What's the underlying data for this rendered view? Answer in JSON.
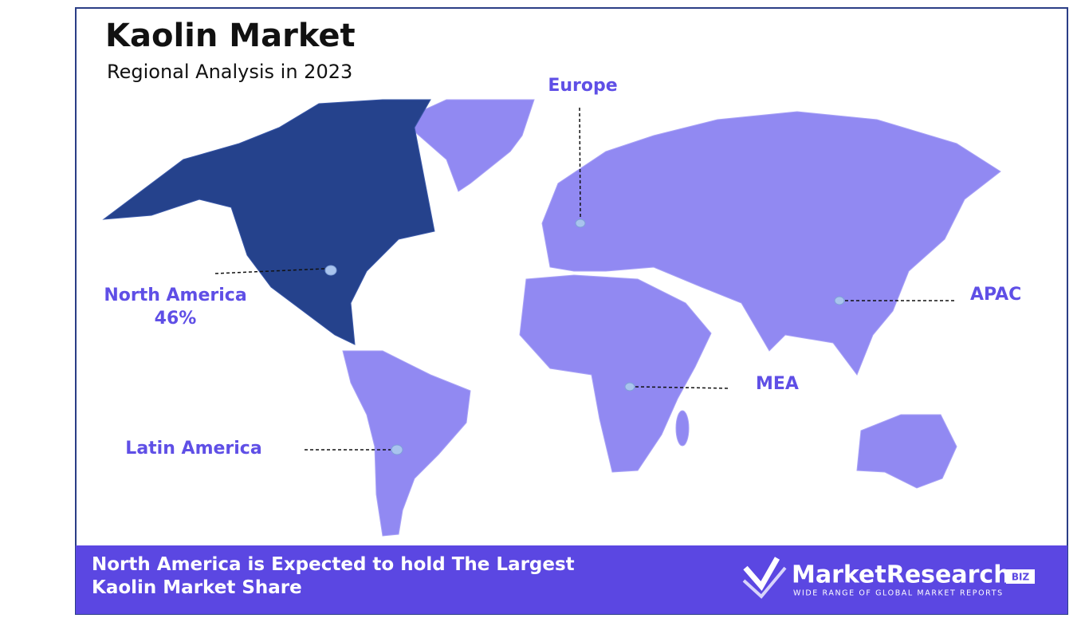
{
  "header": {
    "title": "Kaolin Market",
    "subtitle": "Regional Analysis in 2023"
  },
  "regions": [
    {
      "label": "Europe"
    },
    {
      "label": "North America",
      "value_label": "46%"
    },
    {
      "label": "APAC"
    },
    {
      "label": "MEA"
    },
    {
      "label": "Latin America"
    }
  ],
  "footer": {
    "text": "North America is Expected to hold The Largest Kaolin Market Share",
    "logo": {
      "name": "MarketResearch",
      "badge": "BIZ",
      "tagline": "WIDE RANGE OF GLOBAL MARKET REPORTS"
    }
  }
}
